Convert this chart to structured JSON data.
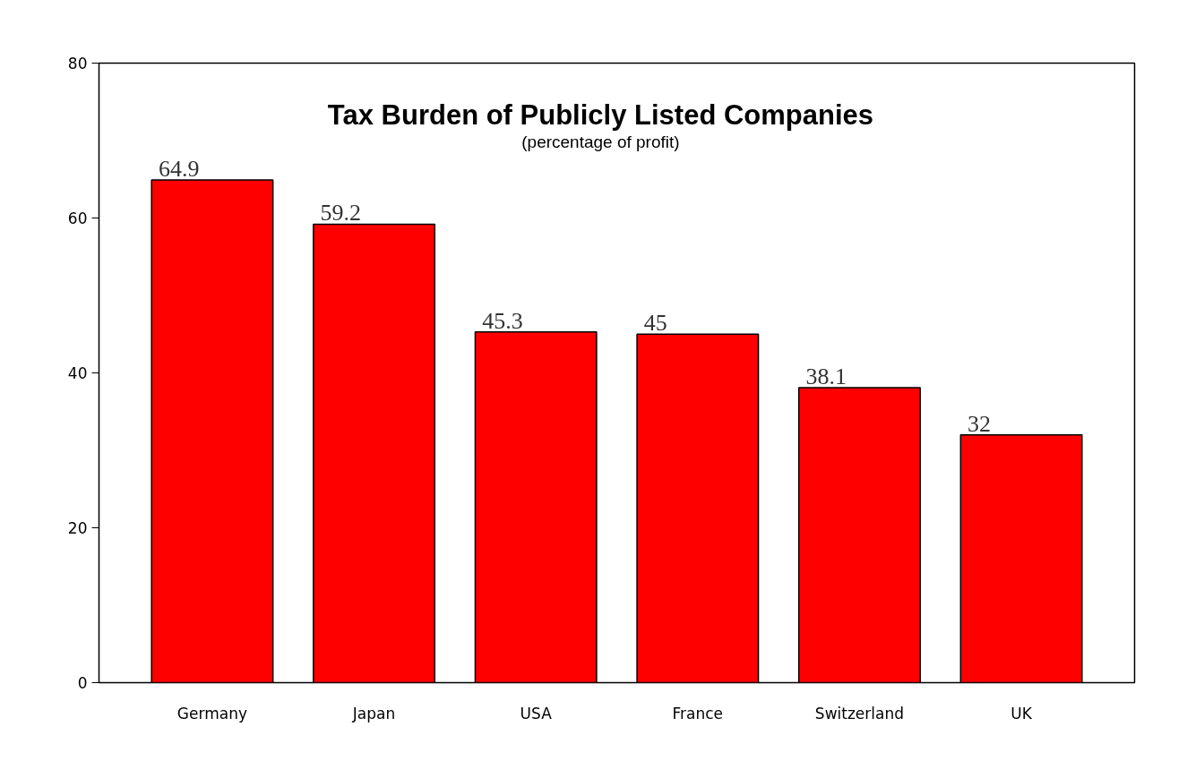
{
  "chart_data": {
    "type": "bar",
    "title": "Tax Burden of Publicly Listed Companies",
    "subtitle": "(percentage of profit)",
    "categories": [
      "Germany",
      "Japan",
      "USA",
      "France",
      "Switzerland",
      "UK"
    ],
    "values": [
      64.9,
      59.2,
      45.3,
      45,
      38.1,
      32
    ],
    "color": "#ff0000",
    "ylim": [
      0,
      80
    ],
    "yticks": [
      0,
      20,
      40,
      60,
      80
    ],
    "data_labels": true,
    "grid": false
  }
}
